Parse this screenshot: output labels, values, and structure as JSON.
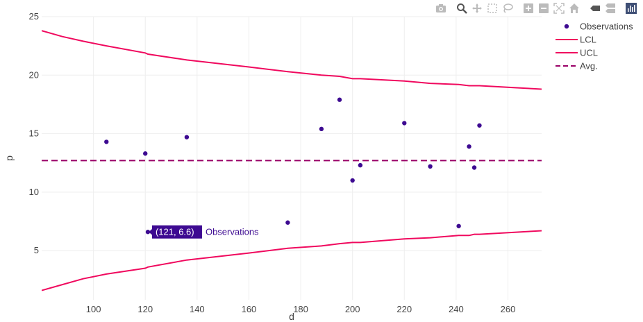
{
  "modebar": {
    "buttons": [
      {
        "name": "camera-icon"
      },
      {
        "name": "zoom-icon"
      },
      {
        "name": "pan-icon"
      },
      {
        "name": "box-select-icon"
      },
      {
        "name": "lasso-select-icon"
      },
      {
        "name": "zoom-in-icon"
      },
      {
        "name": "zoom-out-icon"
      },
      {
        "name": "autoscale-icon"
      },
      {
        "name": "reset-axes-icon"
      },
      {
        "name": "spike-lines-icon"
      },
      {
        "name": "hover-compare-icon"
      },
      {
        "name": "plotly-logo-icon"
      }
    ]
  },
  "chart_data": {
    "type": "scatter",
    "xlabel": "d",
    "ylabel": "p",
    "xlim": [
      80,
      273
    ],
    "ylim": [
      0.8,
      25
    ],
    "xticks": [
      100,
      120,
      140,
      160,
      180,
      200,
      220,
      240,
      260
    ],
    "yticks": [
      5,
      10,
      15,
      20,
      25
    ],
    "grid": true,
    "legend_position": "top-right",
    "colors": {
      "observations": "#3d0a91",
      "limits": "#f0095e",
      "avg": "#990066",
      "grid": "#eeeeee"
    },
    "series": [
      {
        "name": "Observations",
        "mode": "markers",
        "x": [
          105,
          120,
          121,
          136,
          175,
          188,
          195,
          200,
          203,
          220,
          230,
          241,
          245,
          247,
          249
        ],
        "y": [
          14.3,
          13.3,
          6.6,
          14.7,
          7.4,
          15.4,
          17.9,
          11.0,
          12.3,
          15.9,
          12.2,
          7.1,
          13.9,
          12.1,
          15.7
        ]
      },
      {
        "name": "LCL",
        "mode": "lines",
        "x": [
          80,
          88,
          96,
          105,
          120,
          121,
          136,
          160,
          175,
          188,
          195,
          200,
          203,
          220,
          230,
          241,
          245,
          247,
          249,
          273
        ],
        "y": [
          1.6,
          2.1,
          2.6,
          3.0,
          3.5,
          3.6,
          4.2,
          4.8,
          5.2,
          5.4,
          5.6,
          5.7,
          5.7,
          6.0,
          6.1,
          6.3,
          6.3,
          6.4,
          6.4,
          6.7
        ]
      },
      {
        "name": "UCL",
        "mode": "lines",
        "x": [
          80,
          88,
          96,
          105,
          120,
          121,
          136,
          160,
          175,
          188,
          195,
          200,
          203,
          220,
          230,
          241,
          245,
          247,
          249,
          273
        ],
        "y": [
          23.8,
          23.3,
          22.9,
          22.5,
          21.9,
          21.8,
          21.3,
          20.7,
          20.3,
          20.0,
          19.9,
          19.7,
          19.7,
          19.5,
          19.3,
          19.2,
          19.1,
          19.1,
          19.1,
          18.8
        ]
      },
      {
        "name": "Avg.",
        "mode": "dashed",
        "x": [
          80,
          273
        ],
        "y": [
          12.7,
          12.7
        ]
      }
    ],
    "hover": {
      "label": "(121, 6.6)",
      "series": "Observations",
      "x": 121,
      "y": 6.6
    }
  }
}
